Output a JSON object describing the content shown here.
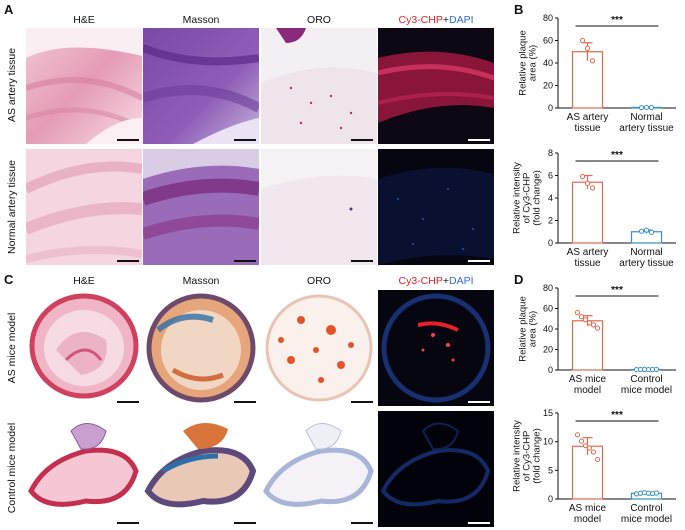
{
  "panels": {
    "A": "A",
    "B": "B",
    "C": "C",
    "D": "D"
  },
  "columns_top": {
    "he": "H&E",
    "masson": "Masson",
    "oro": "ORO",
    "fluor_a": "Cy3-CHP",
    "fluor_plus": "+",
    "fluor_b": "DAPI"
  },
  "columns_bottom": {
    "he": "H&E",
    "masson": "Masson",
    "oro": "ORO",
    "fluor_a": "Cy3-CHP",
    "fluor_plus": "+",
    "fluor_b": "DAPI"
  },
  "rows": {
    "as_artery": "AS artery tissue",
    "normal_artery": "Normal artery tissue",
    "as_mice": "AS mice model",
    "control_mice": "Control mice model"
  },
  "colors": {
    "accent_red": "#e06a4f",
    "accent_blue": "#3a8fc4",
    "cy3_red": "#e8202a",
    "dapi_blue": "#2f6bd6"
  },
  "chart_data": [
    {
      "id": "B1",
      "type": "bar",
      "categories": [
        "AS artery tissue",
        "Normal artery tissue"
      ],
      "category_lines": [
        [
          "AS artery",
          "tissue"
        ],
        [
          "Normal",
          "artery tissue"
        ]
      ],
      "values": [
        50,
        0.5
      ],
      "errors": [
        8,
        0.4
      ],
      "points": [
        [
          60,
          53,
          42
        ],
        [
          0.3,
          0.6,
          0.4
        ]
      ],
      "bar_colors": [
        "#e06a4f",
        "#3a8fc4"
      ],
      "ylabel_lines": [
        "Relative plaque",
        "area (%)"
      ],
      "ylim": [
        0,
        80
      ],
      "yticks": [
        0,
        20,
        40,
        60,
        80
      ],
      "significance": "***"
    },
    {
      "id": "B2",
      "type": "bar",
      "categories": [
        "AS artery tissue",
        "Normal artery tissue"
      ],
      "category_lines": [
        [
          "AS artery",
          "tissue"
        ],
        [
          "Normal",
          "artery tissue"
        ]
      ],
      "values": [
        5.4,
        1.0
      ],
      "errors": [
        0.6,
        0.15
      ],
      "points": [
        [
          5.9,
          5.3,
          4.9
        ],
        [
          1.05,
          1.15,
          0.95
        ]
      ],
      "bar_colors": [
        "#e06a4f",
        "#3a8fc4"
      ],
      "ylabel_lines": [
        "Relative intensity",
        "of Cy3-CHP",
        "(fold change)"
      ],
      "ylim": [
        0,
        8
      ],
      "yticks": [
        0,
        2,
        4,
        6,
        8
      ],
      "significance": "***"
    },
    {
      "id": "D1",
      "type": "bar",
      "categories": [
        "AS mice model",
        "Control mice model"
      ],
      "category_lines": [
        [
          "AS mice",
          "model"
        ],
        [
          "Control",
          "mice model"
        ]
      ],
      "values": [
        48,
        0.5
      ],
      "errors": [
        5,
        0.3
      ],
      "points": [
        [
          56,
          52,
          49,
          46,
          44,
          41
        ],
        [
          0.4,
          0.5,
          0.6,
          0.4,
          0.5,
          0.6
        ]
      ],
      "bar_colors": [
        "#e06a4f",
        "#3a8fc4"
      ],
      "ylabel_lines": [
        "Relative plaque",
        "area (%)"
      ],
      "ylim": [
        0,
        80
      ],
      "yticks": [
        0,
        20,
        40,
        60,
        80
      ],
      "significance": "***"
    },
    {
      "id": "D2",
      "type": "bar",
      "categories": [
        "AS mice model",
        "Control mice model"
      ],
      "category_lines": [
        [
          "AS mice",
          "model"
        ],
        [
          "Control",
          "mice model"
        ]
      ],
      "values": [
        9.2,
        1.0
      ],
      "errors": [
        1.5,
        0.15
      ],
      "points": [
        [
          11.2,
          10.1,
          9.3,
          8.9,
          8.2,
          6.9
        ],
        [
          0.9,
          1.0,
          1.1,
          1.0,
          0.95,
          1.05
        ]
      ],
      "bar_colors": [
        "#e06a4f",
        "#3a8fc4"
      ],
      "ylabel_lines": [
        "Relative intensity",
        "of Cy3-CHP",
        "(fold change)"
      ],
      "ylim": [
        0,
        15
      ],
      "yticks": [
        0,
        5,
        10,
        15
      ],
      "significance": "***"
    }
  ]
}
